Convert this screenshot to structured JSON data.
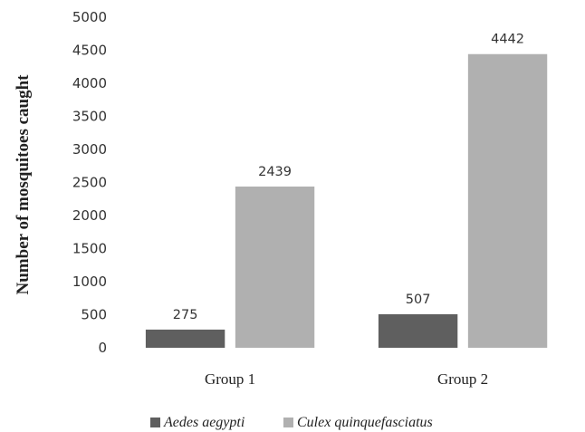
{
  "chart_data": {
    "type": "bar",
    "title": "",
    "xlabel": "",
    "ylabel": "Number of mosquitoes caught",
    "categories": [
      "Group 1",
      "Group 2"
    ],
    "series": [
      {
        "name": "Aedes aegypti",
        "values": [
          275,
          507
        ],
        "color": "#5f5f5f"
      },
      {
        "name": "Culex quinquefasciatus",
        "values": [
          2439,
          4442
        ],
        "color": "#b0b0b0"
      }
    ],
    "ylim": [
      0,
      5000
    ],
    "yticks": [
      "0",
      "500",
      "1000",
      "1500",
      "2000",
      "2500",
      "3000",
      "3500",
      "4000",
      "4500",
      "5000"
    ],
    "data_labels": [
      [
        "275",
        "507"
      ],
      [
        "2439",
        "4442"
      ]
    ],
    "grid": false,
    "legend_position": "bottom"
  }
}
